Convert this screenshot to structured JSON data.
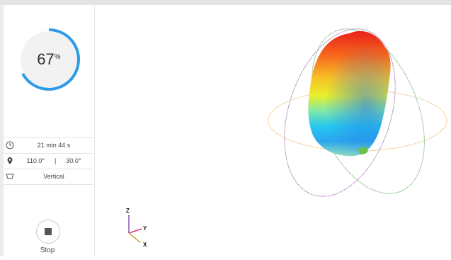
{
  "progress": {
    "value": 67,
    "value_text": "67",
    "unit": "%",
    "color": "#2e9be8",
    "track_color": "#f0f0f0"
  },
  "details": {
    "duration": "21 min 44 s",
    "angle_1": "110.0°",
    "separator": "|",
    "angle_2": "30.0°",
    "orientation": "Vertical"
  },
  "icons": {
    "clock": "clock-icon",
    "location": "location-pin-icon",
    "orientation": "orientation-icon",
    "stop": "stop-icon"
  },
  "stop_button": {
    "label": "Stop"
  },
  "axes": {
    "z": "Z",
    "y": "Y",
    "x": "X"
  },
  "colors": {
    "ring_orange": "#f0c070",
    "ring_purple": "#a87ab8",
    "ring_green": "#7bb87a"
  }
}
